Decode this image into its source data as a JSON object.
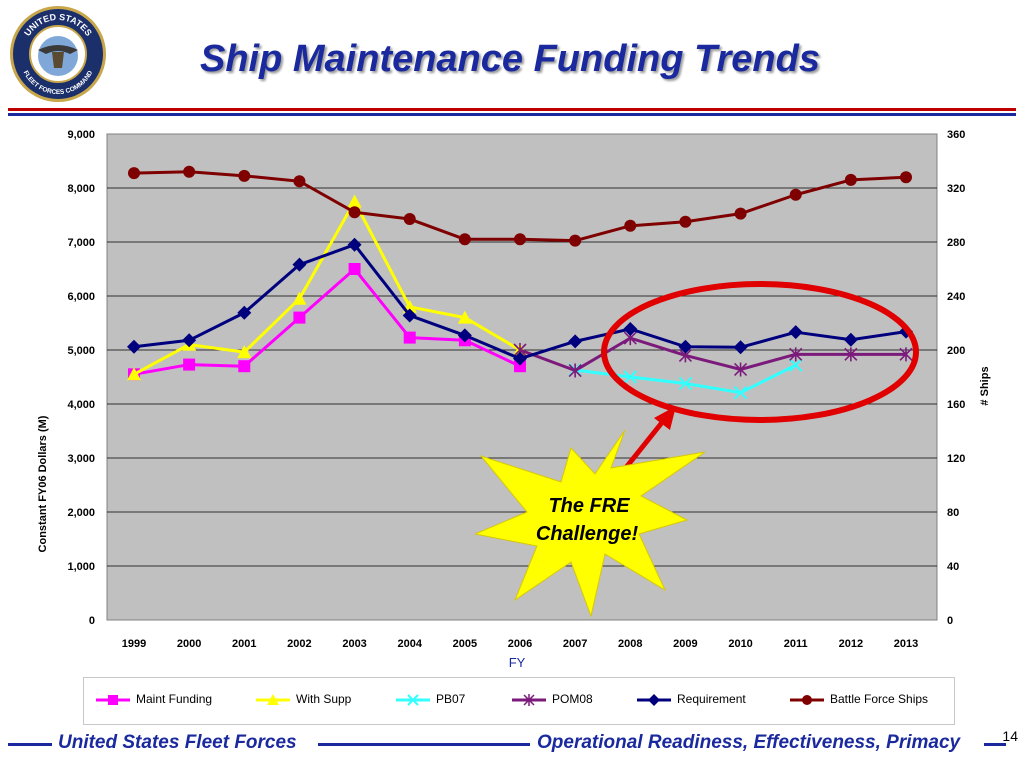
{
  "slide": {
    "title": "Ship Maintenance Funding Trends",
    "seal_text_top": "UNITED STATES",
    "seal_text_bottom": "FLEET FORCES COMMAND",
    "footer_left": "United States Fleet Forces",
    "footer_right": "Operational Readiness, Effectiveness, Primacy",
    "page_number": "14",
    "callout": [
      "The FRE",
      "Challenge!"
    ],
    "colors": {
      "title": "#1a2a9e",
      "rule_red": "#c00000",
      "rule_blue": "#1a2a9e",
      "plot_bg": "#c0c0c0",
      "callout_fill": "#ffff00",
      "ellipse": "#e00000"
    }
  },
  "chart_data": {
    "type": "line",
    "xlabel": "FY",
    "ylabel": "Constant FY06 Dollars (M)",
    "y2label": "# Ships",
    "categories": [
      "1999",
      "2000",
      "2001",
      "2002",
      "2003",
      "2004",
      "2005",
      "2006",
      "2007",
      "2008",
      "2009",
      "2010",
      "2011",
      "2012",
      "2013"
    ],
    "ylim": [
      0,
      9000
    ],
    "y2lim": [
      0,
      360
    ],
    "yticks": [
      "0",
      "1,000",
      "2,000",
      "3,000",
      "4,000",
      "5,000",
      "6,000",
      "7,000",
      "8,000",
      "9,000"
    ],
    "y2ticks": [
      "0",
      "40",
      "80",
      "120",
      "160",
      "200",
      "240",
      "280",
      "320",
      "360"
    ],
    "grid": true,
    "legend_position": "bottom",
    "series": [
      {
        "name": "Maint Funding",
        "color": "#ff00ff",
        "marker": "square",
        "axis": "left",
        "values": [
          4550,
          4730,
          4700,
          5600,
          6500,
          5230,
          5180,
          4700,
          null,
          null,
          null,
          null,
          null,
          null,
          null
        ]
      },
      {
        "name": "With Supp",
        "color": "#ffff00",
        "marker": "triangle",
        "axis": "left",
        "values": [
          4550,
          5100,
          4960,
          5950,
          7750,
          5800,
          5600,
          5000,
          null,
          null,
          null,
          null,
          null,
          null,
          null
        ]
      },
      {
        "name": "PB07",
        "color": "#33ffff",
        "marker": "x",
        "axis": "left",
        "values": [
          null,
          null,
          null,
          null,
          null,
          null,
          null,
          null,
          4630,
          4500,
          4380,
          4210,
          4720,
          null,
          null
        ]
      },
      {
        "name": "POM08",
        "color": "#7b1a7b",
        "marker": "star",
        "axis": "left",
        "values": [
          null,
          null,
          null,
          null,
          null,
          null,
          null,
          5000,
          4620,
          5220,
          4900,
          4640,
          4920,
          4920,
          4920
        ]
      },
      {
        "name": "Requirement",
        "color": "#00007f",
        "marker": "diamond",
        "axis": "left",
        "values": [
          5060,
          5180,
          5690,
          6580,
          6950,
          5640,
          5270,
          4840,
          5160,
          5390,
          5060,
          5050,
          5330,
          5190,
          5340
        ]
      },
      {
        "name": "Battle Force Ships",
        "color": "#7f0000",
        "marker": "circle",
        "axis": "right",
        "values": [
          331,
          332,
          329,
          325,
          302,
          297,
          282,
          282,
          281,
          292,
          295,
          301,
          315,
          326,
          328
        ]
      }
    ]
  }
}
